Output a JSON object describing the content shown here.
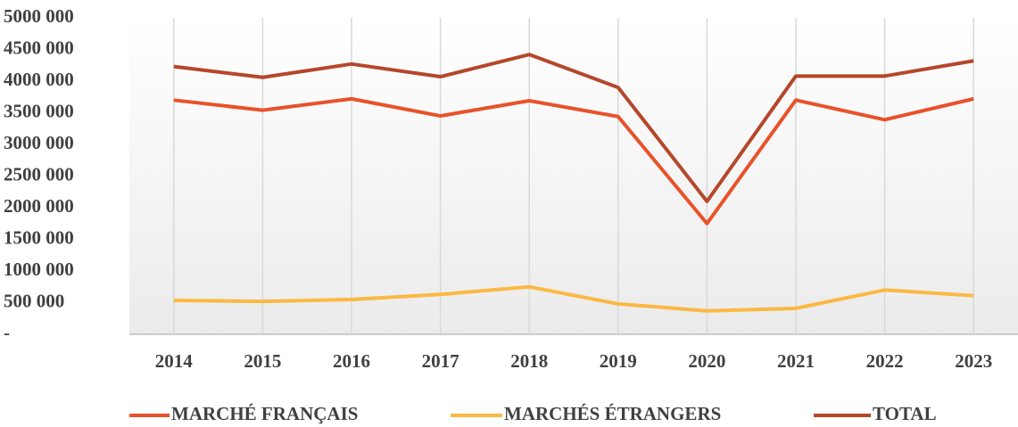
{
  "chart_data": {
    "type": "line",
    "categories": [
      "2014",
      "2015",
      "2016",
      "2017",
      "2018",
      "2019",
      "2020",
      "2021",
      "2022",
      "2023"
    ],
    "series": [
      {
        "name": "MARCHÉ FRANÇAIS",
        "color": "#e8522a",
        "values": [
          3700000,
          3540000,
          3720000,
          3450000,
          3690000,
          3440000,
          1750000,
          3700000,
          3390000,
          3720000
        ]
      },
      {
        "name": "MARCHÉS ÉTRANGERS",
        "color": "#fbb843",
        "values": [
          535000,
          520000,
          550000,
          630000,
          750000,
          480000,
          370000,
          410000,
          700000,
          610000
        ]
      },
      {
        "name": "TOTAL",
        "color": "#b5472a",
        "values": [
          4230000,
          4060000,
          4270000,
          4070000,
          4420000,
          3900000,
          2100000,
          4080000,
          4080000,
          4320000
        ]
      }
    ],
    "ylim": [
      0,
      5000000
    ],
    "yticks": [
      {
        "value": 0,
        "label": "-"
      },
      {
        "value": 500000,
        "label": "500 000"
      },
      {
        "value": 1000000,
        "label": "1000 000"
      },
      {
        "value": 1500000,
        "label": "1500 000"
      },
      {
        "value": 2000000,
        "label": "2000 000"
      },
      {
        "value": 2500000,
        "label": "2500 000"
      },
      {
        "value": 3000000,
        "label": "3000 000"
      },
      {
        "value": 3500000,
        "label": "3500 000"
      },
      {
        "value": 4000000,
        "label": "4000 000"
      },
      {
        "value": 4500000,
        "label": "4500 000"
      },
      {
        "value": 5000000,
        "label": "5000 000"
      }
    ],
    "grid": true,
    "legend": "bottom"
  }
}
